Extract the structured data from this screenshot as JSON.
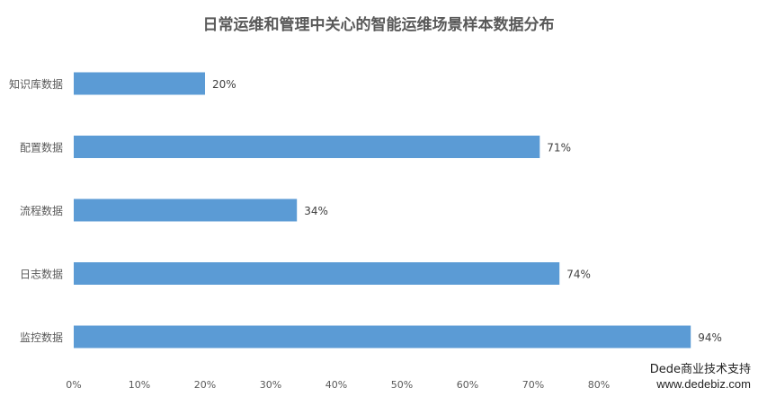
{
  "chart_data": {
    "type": "bar",
    "orientation": "horizontal",
    "title": "日常运维和管理中关心的智能运维场景样本数据分布",
    "categories": [
      "知识库数据",
      "配置数据",
      "流程数据",
      "日志数据",
      "监控数据"
    ],
    "values": [
      20,
      71,
      34,
      74,
      94
    ],
    "data_labels": [
      "20%",
      "71%",
      "34%",
      "74%",
      "94%"
    ],
    "x_ticks": [
      0,
      10,
      20,
      30,
      40,
      50,
      60,
      70,
      80
    ],
    "x_tick_labels": [
      "0%",
      "10%",
      "20%",
      "30%",
      "40%",
      "50%",
      "60%",
      "70%",
      "80%"
    ],
    "xlim": [
      0,
      100
    ],
    "grid": false,
    "legend": "none",
    "bar_color": "#5b9bd5"
  },
  "watermark": {
    "line1": "Dede商业技术支持",
    "line2": "www.dedebiz.com"
  }
}
